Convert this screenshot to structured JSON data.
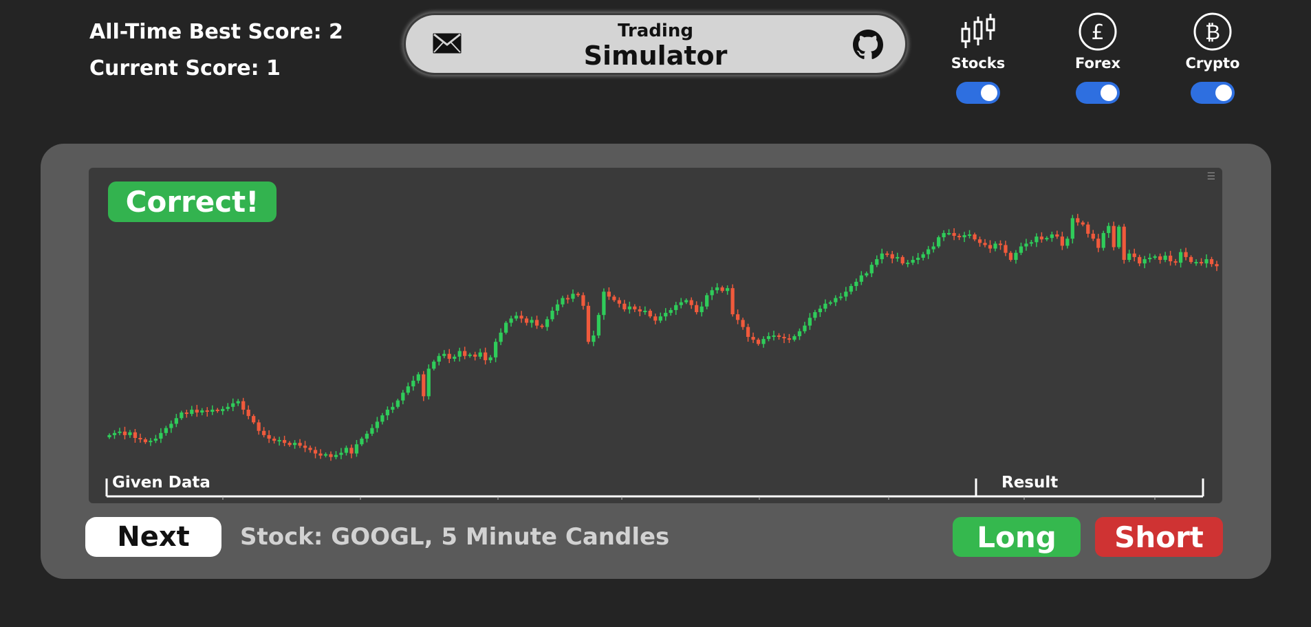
{
  "header": {
    "best_score": "All-Time Best Score: 2",
    "current_score": "Current Score: 1",
    "title_small": "Trading",
    "title_big": "Simulator"
  },
  "markets": [
    {
      "label": "Stocks",
      "enabled": true,
      "icon": "candlestick-icon"
    },
    {
      "label": "Forex",
      "enabled": true,
      "icon": "pound-icon"
    },
    {
      "label": "Crypto",
      "enabled": true,
      "icon": "bitcoin-icon"
    }
  ],
  "result_badge": "Correct!",
  "chart_labels": {
    "given": "Given Data",
    "result": "Result"
  },
  "footer": {
    "next_label": "Next",
    "stock_info": "Stock: GOOGL, 5 Minute Candles",
    "long_label": "Long",
    "short_label": "Short"
  },
  "colors": {
    "up": "#2fcc5a",
    "down": "#f05a3c",
    "correct": "#33b34f",
    "long": "#35b84e",
    "short": "#cf3333",
    "toggle": "#2e6fe0"
  },
  "chart_data": {
    "type": "candlestick",
    "close": [
      100,
      100.3,
      100.5,
      100,
      100.4,
      99.6,
      99.4,
      99,
      99.2,
      99.5,
      100.3,
      101,
      101.6,
      102.4,
      103.2,
      103,
      103.6,
      103.2,
      103.5,
      103.3,
      103.6,
      103.4,
      103.7,
      104,
      104.5,
      104.8,
      103.6,
      102.7,
      101.8,
      100.6,
      100,
      99.5,
      99.2,
      99.3,
      98.9,
      98.6,
      98.9,
      98.5,
      98.2,
      97.9,
      97.4,
      97.1,
      97.3,
      96.9,
      97.2,
      97.5,
      98.2,
      97.4,
      98.7,
      99.5,
      100.2,
      101,
      101.9,
      102.8,
      103.6,
      104,
      104.9,
      106,
      106.9,
      107.7,
      108.6,
      105.5,
      109.4,
      110.4,
      111.2,
      111.5,
      110.8,
      111.1,
      111.9,
      111.2,
      111.4,
      111.1,
      111.7,
      110.6,
      111,
      113.2,
      114.5,
      115.9,
      116.5,
      116.9,
      116.5,
      115.9,
      116.3,
      115.5,
      115.3,
      116.4,
      117.6,
      118.5,
      119.4,
      119.3,
      120,
      119.8,
      118.3,
      113.2,
      114.1,
      117,
      120.3,
      119.6,
      119.1,
      118.6,
      117.8,
      118.2,
      117.8,
      117.5,
      117.6,
      116.8,
      116.2,
      116.8,
      117.3,
      117.7,
      118.4,
      118.8,
      119.1,
      118.4,
      117.4,
      118.2,
      119.8,
      120.5,
      120.9,
      120.4,
      120.8,
      117.1,
      116.3,
      115.3,
      113.9,
      113.5,
      112.9,
      113.6,
      114,
      114.1,
      113.9,
      113.7,
      113.5,
      114,
      114.7,
      115.5,
      116.6,
      117.4,
      117.9,
      118.6,
      118.8,
      119.4,
      119.6,
      120.3,
      121.1,
      121.7,
      122.6,
      122.9,
      124.1,
      124.9,
      125.7,
      125.6,
      125,
      125.2,
      124.3,
      124.4,
      124.8,
      125.1,
      125.6,
      126.3,
      126.7,
      128,
      128.6,
      128.6,
      128.2,
      128,
      128.3,
      128.4,
      127.7,
      127.2,
      126.9,
      126.4,
      127.1,
      126.9,
      125.8,
      124.8,
      125.8,
      126.7,
      127.1,
      127.3,
      128.1,
      127.7,
      127.9,
      128.4,
      128.1,
      126.8,
      127.8,
      130.7,
      130.1,
      129.8,
      128.5,
      127.8,
      126.5,
      128.6,
      129.6,
      126.6,
      129.5,
      124.8,
      125.7,
      125.2,
      124.3,
      124.9,
      125.1,
      125.3,
      124.8,
      125.4,
      124.6,
      124.4,
      125.9,
      125.2,
      124.5,
      124.5,
      124.3,
      124.9,
      124.2,
      123.9
    ],
    "x_axis_scale": "time",
    "segments": [
      "Given Data",
      "Result"
    ],
    "given_count": 182,
    "y_range": [
      96,
      132
    ]
  }
}
